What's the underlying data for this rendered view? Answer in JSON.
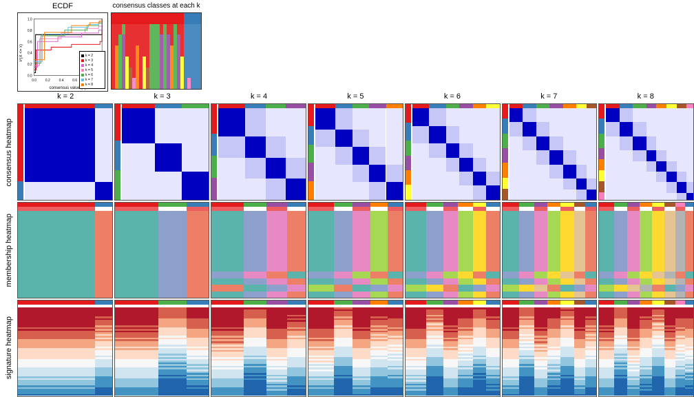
{
  "titles": {
    "ecdf": "ECDF",
    "consensus_classes": "consensus classes at each k"
  },
  "row_labels": [
    "consensus heatmap",
    "membership heatmap",
    "signature heatmap"
  ],
  "k_values": [
    "k = 2",
    "k = 3",
    "k = 4",
    "k = 5",
    "k = 6",
    "k = 7",
    "k = 8"
  ],
  "ecdf": {
    "xlabel": "consensus value (x)",
    "ylabel": "P(X <= x)",
    "xlim": [
      0,
      1
    ],
    "ylim": [
      0,
      1
    ],
    "xticks": [
      "0.0",
      "0.2",
      "0.4",
      "0.6",
      "0.8",
      "1.0"
    ],
    "yticks": [
      "0.0",
      "0.2",
      "0.4",
      "0.6",
      "0.8",
      "1.0"
    ],
    "legend_items": [
      {
        "label": "k = 2",
        "color": "#000000"
      },
      {
        "label": "k = 3",
        "color": "#e41a1c"
      },
      {
        "label": "k = 4",
        "color": "#d462d4"
      },
      {
        "label": "k = 5",
        "color": "#f781bf"
      },
      {
        "label": "k = 6",
        "color": "#4daf4a"
      },
      {
        "label": "k = 7",
        "color": "#66c2e5"
      },
      {
        "label": "k = 8",
        "color": "#ff7f00"
      }
    ],
    "lines": [
      {
        "color": "#000000",
        "points": [
          [
            0,
            0.05
          ],
          [
            0.02,
            0.72
          ],
          [
            0.05,
            0.72
          ],
          [
            0.98,
            0.72
          ],
          [
            1.0,
            1.0
          ]
        ]
      },
      {
        "color": "#e41a1c",
        "points": [
          [
            0,
            0.1
          ],
          [
            0.03,
            0.45
          ],
          [
            0.25,
            0.5
          ],
          [
            0.55,
            0.55
          ],
          [
            0.97,
            0.6
          ],
          [
            1.0,
            1.0
          ]
        ]
      },
      {
        "color": "#d462d4",
        "points": [
          [
            0,
            0.15
          ],
          [
            0.05,
            0.6
          ],
          [
            0.35,
            0.68
          ],
          [
            0.7,
            0.75
          ],
          [
            0.95,
            0.8
          ],
          [
            1.0,
            1.0
          ]
        ]
      },
      {
        "color": "#f781bf",
        "points": [
          [
            0,
            0.18
          ],
          [
            0.08,
            0.65
          ],
          [
            0.4,
            0.75
          ],
          [
            0.75,
            0.83
          ],
          [
            0.95,
            0.87
          ],
          [
            1.0,
            1.0
          ]
        ]
      },
      {
        "color": "#4daf4a",
        "points": [
          [
            0,
            0.22
          ],
          [
            0.1,
            0.7
          ],
          [
            0.45,
            0.8
          ],
          [
            0.78,
            0.88
          ],
          [
            0.95,
            0.92
          ],
          [
            1.0,
            1.0
          ]
        ]
      },
      {
        "color": "#66c2e5",
        "points": [
          [
            0,
            0.25
          ],
          [
            0.12,
            0.73
          ],
          [
            0.5,
            0.85
          ],
          [
            0.8,
            0.9
          ],
          [
            0.95,
            0.94
          ],
          [
            1.0,
            1.0
          ]
        ]
      },
      {
        "color": "#ff7f00",
        "points": [
          [
            0,
            0.28
          ],
          [
            0.15,
            0.76
          ],
          [
            0.55,
            0.88
          ],
          [
            0.82,
            0.93
          ],
          [
            0.96,
            0.96
          ],
          [
            1.0,
            1.0
          ]
        ]
      }
    ]
  },
  "palette": {
    "classes": [
      "#e41a1c",
      "#377eb8",
      "#4daf4a",
      "#984ea3",
      "#ff7f00",
      "#ffff33",
      "#a65628",
      "#f781bf"
    ],
    "member": [
      "#5ab4ac",
      "#ed7f67",
      "#8da0cb",
      "#e78ac3",
      "#a6d854",
      "#ffd92f",
      "#e5c494",
      "#b3b3b3"
    ],
    "blue_scale": [
      "#ffffff",
      "#e6e6ff",
      "#c7c7f7",
      "#9e9eec",
      "#6a6ae0",
      "#3030d0",
      "#0000c0"
    ],
    "rdbu": [
      "#b2182b",
      "#d6604d",
      "#f4a582",
      "#fddbc7",
      "#f7f7f7",
      "#d1e5f0",
      "#92c5de",
      "#4393c3",
      "#2166ac"
    ]
  },
  "consensus_classes_bars": {
    "n_samples": 26,
    "rows": [
      [
        0,
        0,
        0,
        0,
        0,
        0,
        0,
        0,
        0,
        0,
        0,
        0,
        0,
        0,
        0,
        0,
        0,
        0,
        0,
        0,
        0,
        1,
        1,
        1,
        1,
        1
      ],
      [
        0,
        0,
        0,
        2,
        0,
        0,
        0,
        0,
        0,
        0,
        0,
        2,
        2,
        2,
        0,
        2,
        0,
        0,
        2,
        0,
        0,
        1,
        1,
        1,
        1,
        1
      ],
      [
        0,
        0,
        2,
        3,
        0,
        0,
        0,
        0,
        0,
        0,
        0,
        2,
        2,
        2,
        3,
        2,
        3,
        0,
        2,
        3,
        0,
        1,
        1,
        1,
        1,
        1
      ],
      [
        0,
        4,
        2,
        3,
        0,
        0,
        0,
        4,
        0,
        0,
        0,
        2,
        2,
        2,
        3,
        2,
        3,
        4,
        2,
        3,
        0,
        1,
        1,
        1,
        1,
        1
      ],
      [
        0,
        4,
        2,
        3,
        5,
        0,
        0,
        4,
        0,
        5,
        0,
        2,
        2,
        2,
        3,
        2,
        3,
        4,
        2,
        3,
        5,
        1,
        1,
        1,
        1,
        1
      ],
      [
        0,
        4,
        2,
        3,
        5,
        6,
        0,
        4,
        0,
        5,
        6,
        2,
        2,
        2,
        3,
        2,
        3,
        4,
        2,
        3,
        5,
        1,
        1,
        1,
        1,
        1
      ],
      [
        0,
        4,
        2,
        3,
        5,
        6,
        7,
        4,
        0,
        5,
        6,
        2,
        2,
        2,
        3,
        2,
        3,
        4,
        2,
        3,
        5,
        1,
        7,
        1,
        1,
        1
      ]
    ]
  },
  "consensus_heatmaps": {
    "k2": {
      "blocks": [
        21,
        5
      ],
      "sep": [
        0.15
      ]
    },
    "k3": {
      "blocks": [
        10,
        8,
        8
      ],
      "sep": [
        0.25,
        0.15
      ]
    },
    "k4": {
      "blocks": [
        8,
        6,
        6,
        6
      ],
      "sep": [
        0.3,
        0.25,
        0.15
      ]
    },
    "k5": {
      "blocks": [
        6,
        5,
        5,
        5,
        5
      ],
      "sep": [
        0.3,
        0.28,
        0.22,
        0.15
      ]
    },
    "k6": {
      "blocks": [
        5,
        5,
        4,
        4,
        4,
        4
      ],
      "sep": [
        0.3,
        0.28,
        0.25,
        0.2,
        0.15
      ]
    },
    "k7": {
      "blocks": [
        4,
        4,
        4,
        4,
        4,
        3,
        3
      ],
      "sep": [
        0.3,
        0.28,
        0.26,
        0.22,
        0.18,
        0.15
      ]
    },
    "k8": {
      "blocks": [
        4,
        4,
        4,
        3,
        3,
        3,
        3,
        2
      ],
      "sep": [
        0.3,
        0.28,
        0.26,
        0.24,
        0.2,
        0.18,
        0.15
      ]
    }
  },
  "membership": {
    "k2": {
      "widths": [
        0.82,
        0.18
      ],
      "classes": [
        0,
        1
      ]
    },
    "k3": {
      "widths": [
        0.46,
        0.3,
        0.24
      ],
      "classes": [
        0,
        2,
        1
      ]
    },
    "k4": {
      "widths": [
        0.34,
        0.24,
        0.22,
        0.2
      ],
      "classes": [
        0,
        2,
        3,
        1
      ]
    },
    "k5": {
      "widths": [
        0.27,
        0.2,
        0.19,
        0.18,
        0.16
      ],
      "classes": [
        0,
        2,
        3,
        4,
        1
      ]
    },
    "k6": {
      "widths": [
        0.22,
        0.18,
        0.16,
        0.16,
        0.14,
        0.14
      ],
      "classes": [
        0,
        2,
        3,
        4,
        5,
        1
      ]
    },
    "k7": {
      "widths": [
        0.18,
        0.16,
        0.14,
        0.14,
        0.14,
        0.12,
        0.12
      ],
      "classes": [
        0,
        2,
        3,
        4,
        5,
        6,
        1
      ]
    },
    "k8": {
      "widths": [
        0.16,
        0.14,
        0.13,
        0.13,
        0.13,
        0.12,
        0.1,
        0.09
      ],
      "classes": [
        0,
        2,
        3,
        4,
        5,
        6,
        7,
        1
      ]
    }
  },
  "signature": {
    "annotation_heights": 10,
    "n_rows": 60
  }
}
